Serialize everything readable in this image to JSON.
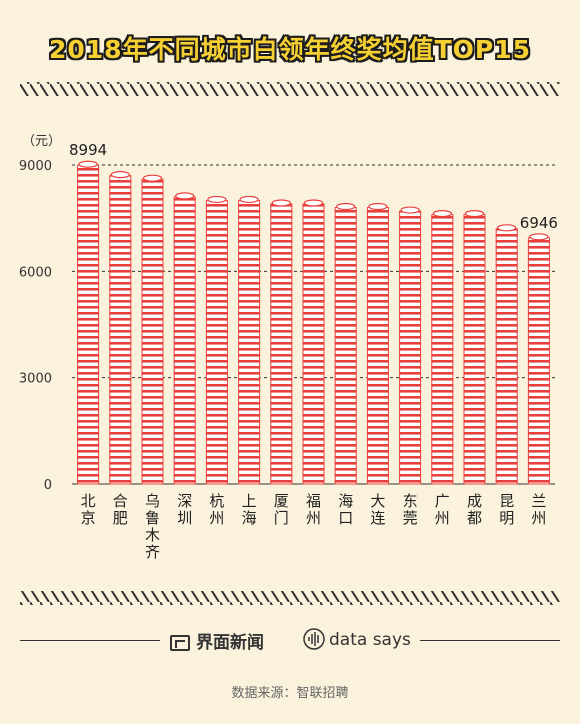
{
  "title": "2018年不同城市白领年终奖均值TOP15",
  "unit": "（元）",
  "footer": {
    "brand_jiemian": "界面新闻",
    "brand_datasays": "data says",
    "source": "数据来源：智联招聘"
  },
  "colors": {
    "bar_stripe": "#e8413d",
    "bar_fill": "#ffffff",
    "title": "#f6cf33",
    "background": "#faf2dc"
  },
  "chart_data": {
    "type": "bar",
    "title": "2018年不同城市白领年终奖均值TOP15",
    "ylabel": "（元）",
    "ylim": [
      0,
      9000
    ],
    "yticks": [
      0,
      3000,
      6000,
      9000
    ],
    "grid": "dashed horizontal at 3000, 6000, 9000",
    "categories": [
      "北京",
      "合肥",
      "乌鲁木齐",
      "深圳",
      "杭州",
      "上海",
      "厦门",
      "福州",
      "海口",
      "大连",
      "东莞",
      "广州",
      "成都",
      "昆明",
      "兰州"
    ],
    "values": [
      8994,
      8700,
      8600,
      8100,
      8000,
      8000,
      7900,
      7900,
      7800,
      7800,
      7700,
      7600,
      7600,
      7200,
      6946
    ],
    "data_labels": [
      {
        "category": "北京",
        "text": "8994"
      },
      {
        "category": "兰州",
        "text": "6946"
      }
    ]
  }
}
